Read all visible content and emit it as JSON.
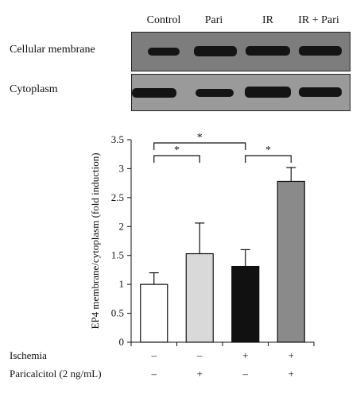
{
  "blot": {
    "lanes": [
      "Control",
      "Pari",
      "IR",
      "IR + Pari"
    ],
    "rows": [
      {
        "label": "Cellular membrane",
        "band_intensity": [
          0.55,
          0.95,
          0.9,
          0.9
        ]
      },
      {
        "label": "Cytoplasm",
        "band_intensity": [
          0.8,
          0.6,
          0.9,
          0.8
        ]
      }
    ]
  },
  "chart_data": {
    "type": "bar",
    "ylabel": "EP4 membrane/cytoplasm (fold induction)",
    "ylim": [
      0,
      3.5
    ],
    "yticks": [
      "0",
      "0.5",
      "1",
      "1.5",
      "2",
      "2.5",
      "3",
      "3.5"
    ],
    "series": [
      {
        "values": [
          1.0,
          1.53,
          1.31,
          2.78
        ],
        "errors": [
          0.2,
          0.53,
          0.29,
          0.24
        ],
        "colors": [
          "#ffffff",
          "#d9d9d9",
          "#111111",
          "#8a8a8a"
        ]
      }
    ],
    "conditions": [
      {
        "label": "Ischemia",
        "values": [
          "–",
          "–",
          "+",
          "+"
        ]
      },
      {
        "label": "Paricalcitol (2 ng/mL)",
        "values": [
          "–",
          "+",
          "–",
          "+"
        ]
      }
    ],
    "significance": [
      {
        "from": 0,
        "to": 1,
        "label": "*"
      },
      {
        "from": 0,
        "to": 2,
        "label": "*"
      },
      {
        "from": 2,
        "to": 3,
        "label": "*"
      }
    ]
  }
}
